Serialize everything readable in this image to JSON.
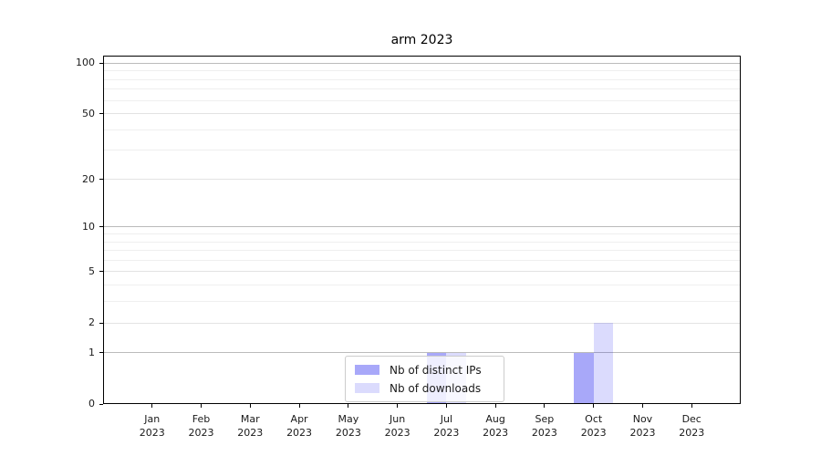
{
  "title": "arm 2023",
  "chart_data": {
    "type": "bar",
    "title": "arm 2023",
    "categories": [
      "Jan",
      "Feb",
      "Mar",
      "Apr",
      "May",
      "Jun",
      "Jul",
      "Aug",
      "Sep",
      "Oct",
      "Nov",
      "Dec"
    ],
    "x_year_label": "2023",
    "series": [
      {
        "name": "Nb of distinct IPs",
        "color": "#0000ee57",
        "values": [
          0,
          0,
          0,
          0,
          0,
          0,
          1,
          0,
          0,
          1,
          0,
          0
        ]
      },
      {
        "name": "Nb of downloads",
        "color": "#0000ee24",
        "values": [
          0,
          0,
          0,
          0,
          0,
          0,
          1,
          0,
          0,
          2,
          0,
          0
        ]
      }
    ],
    "y_ticks": [
      0,
      1,
      2,
      5,
      10,
      20,
      50,
      100
    ],
    "ylim": [
      0,
      111
    ],
    "scale": "log1p",
    "grid": "both",
    "grid_major_color": "#bbbbbb",
    "grid_labeled_minor_color": "#e3e3e3",
    "grid_minor_color": "#efefef",
    "legend_position": "lower center"
  }
}
